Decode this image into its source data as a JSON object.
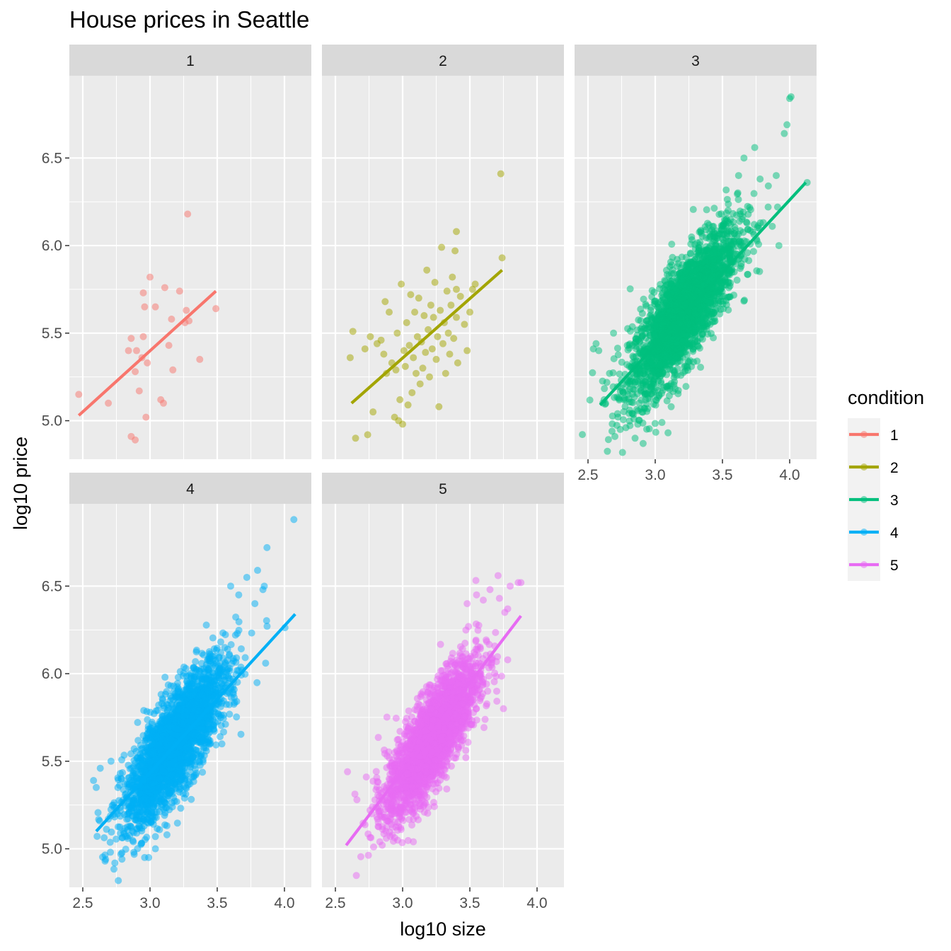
{
  "chart_data": {
    "type": "scatter",
    "title": "House prices in Seattle",
    "xlabel": "log10 size",
    "ylabel": "log10 price",
    "xlim": [
      2.4,
      4.2
    ],
    "ylim": [
      4.78,
      6.97
    ],
    "x_ticks": [
      "2.5",
      "3.0",
      "3.5",
      "4.0"
    ],
    "y_ticks": [
      "5.0",
      "5.5",
      "6.0",
      "6.5"
    ],
    "x_tick_values": [
      2.5,
      3.0,
      3.5,
      4.0
    ],
    "y_tick_values": [
      5.0,
      5.5,
      6.0,
      6.5
    ],
    "grid": true,
    "legend": {
      "title": "condition",
      "placement": "right",
      "entries": [
        "1",
        "2",
        "3",
        "4",
        "5"
      ]
    },
    "panels": [
      {
        "label": "1",
        "color": "#F8766D",
        "fit_line": {
          "x": [
            2.47,
            3.49
          ],
          "y": [
            5.03,
            5.74
          ]
        },
        "points": [
          [
            2.47,
            5.15
          ],
          [
            2.69,
            5.1
          ],
          [
            2.84,
            5.4
          ],
          [
            2.86,
            5.47
          ],
          [
            2.86,
            4.91
          ],
          [
            2.89,
            4.89
          ],
          [
            2.89,
            5.28
          ],
          [
            2.9,
            5.4
          ],
          [
            2.92,
            5.17
          ],
          [
            2.94,
            5.36
          ],
          [
            2.95,
            5.48
          ],
          [
            2.95,
            5.73
          ],
          [
            2.96,
            5.65
          ],
          [
            2.97,
            5.02
          ],
          [
            2.98,
            5.33
          ],
          [
            3.0,
            5.82
          ],
          [
            3.04,
            5.65
          ],
          [
            3.08,
            5.12
          ],
          [
            3.1,
            5.1
          ],
          [
            3.11,
            5.76
          ],
          [
            3.14,
            5.43
          ],
          [
            3.16,
            5.58
          ],
          [
            3.17,
            5.29
          ],
          [
            3.22,
            5.74
          ],
          [
            3.26,
            5.56
          ],
          [
            3.27,
            5.63
          ],
          [
            3.28,
            6.18
          ],
          [
            3.29,
            5.57
          ],
          [
            3.37,
            5.35
          ],
          [
            3.49,
            5.64
          ]
        ]
      },
      {
        "label": "2",
        "color": "#A3A500",
        "fit_line": {
          "x": [
            2.62,
            3.74
          ],
          "y": [
            5.1,
            5.86
          ]
        },
        "points": [
          [
            2.61,
            5.36
          ],
          [
            2.63,
            5.51
          ],
          [
            2.65,
            4.9
          ],
          [
            2.74,
            4.92
          ],
          [
            2.78,
            5.05
          ],
          [
            2.72,
            5.41
          ],
          [
            2.76,
            5.48
          ],
          [
            2.81,
            5.44
          ],
          [
            2.84,
            5.46
          ],
          [
            2.86,
            5.38
          ],
          [
            2.87,
            5.68
          ],
          [
            2.88,
            5.27
          ],
          [
            2.9,
            5.62
          ],
          [
            2.92,
            5.33
          ],
          [
            2.94,
            5.02
          ],
          [
            2.95,
            5.29
          ],
          [
            2.96,
            5.5
          ],
          [
            2.97,
            5.0
          ],
          [
            2.98,
            5.12
          ],
          [
            2.99,
            5.78
          ],
          [
            3.0,
            4.98
          ],
          [
            3.01,
            5.4
          ],
          [
            3.02,
            5.31
          ],
          [
            3.03,
            5.56
          ],
          [
            3.04,
            5.09
          ],
          [
            3.05,
            5.43
          ],
          [
            3.06,
            5.72
          ],
          [
            3.07,
            5.16
          ],
          [
            3.08,
            5.36
          ],
          [
            3.09,
            5.62
          ],
          [
            3.1,
            5.27
          ],
          [
            3.11,
            5.48
          ],
          [
            3.12,
            5.7
          ],
          [
            3.13,
            5.21
          ],
          [
            3.14,
            5.45
          ],
          [
            3.15,
            5.3
          ],
          [
            3.16,
            5.6
          ],
          [
            3.17,
            5.39
          ],
          [
            3.18,
            5.86
          ],
          [
            3.19,
            5.52
          ],
          [
            3.2,
            5.25
          ],
          [
            3.21,
            5.66
          ],
          [
            3.22,
            5.41
          ],
          [
            3.23,
            5.59
          ],
          [
            3.24,
            5.79
          ],
          [
            3.25,
            5.35
          ],
          [
            3.26,
            5.48
          ],
          [
            3.27,
            5.08
          ],
          [
            3.28,
            5.63
          ],
          [
            3.29,
            5.99
          ],
          [
            3.3,
            5.44
          ],
          [
            3.31,
            5.56
          ],
          [
            3.32,
            5.27
          ],
          [
            3.33,
            5.74
          ],
          [
            3.34,
            5.5
          ],
          [
            3.35,
            5.38
          ],
          [
            3.36,
            5.66
          ],
          [
            3.37,
            5.82
          ],
          [
            3.38,
            5.47
          ],
          [
            3.4,
            5.59
          ],
          [
            3.41,
            5.33
          ],
          [
            3.43,
            5.71
          ],
          [
            3.46,
            5.55
          ],
          [
            3.48,
            5.4
          ],
          [
            3.4,
            5.75
          ],
          [
            3.39,
            5.97
          ],
          [
            3.4,
            6.08
          ],
          [
            3.5,
            5.62
          ],
          [
            3.52,
            5.75
          ],
          [
            3.54,
            5.78
          ],
          [
            3.73,
            6.41
          ],
          [
            3.74,
            5.93
          ]
        ]
      },
      {
        "label": "3",
        "color": "#00BF7D",
        "fit_line": {
          "x": [
            2.59,
            4.12
          ],
          "y": [
            5.09,
            6.36
          ]
        },
        "cloud": {
          "center_x": 3.21,
          "center_y": 5.62,
          "sd_x": 0.2,
          "sd_y": 0.24,
          "correlation": 0.8
        },
        "points": [
          [
            2.54,
            5.41
          ],
          [
            2.56,
            5.44
          ],
          [
            2.58,
            5.4
          ],
          [
            2.62,
            5.12
          ],
          [
            2.66,
            5.27
          ],
          [
            2.69,
            5.5
          ],
          [
            2.72,
            5.04
          ],
          [
            2.74,
            4.95
          ],
          [
            2.85,
            4.9
          ],
          [
            2.91,
            4.87
          ],
          [
            3.05,
            4.99
          ],
          [
            3.56,
            6.15
          ],
          [
            3.62,
            6.4
          ],
          [
            3.66,
            6.5
          ],
          [
            3.74,
            6.56
          ],
          [
            3.78,
            6.38
          ],
          [
            3.84,
            6.22
          ],
          [
            3.9,
            6.4
          ],
          [
            3.91,
            6.22
          ],
          [
            3.92,
            6.0
          ],
          [
            3.96,
            6.64
          ],
          [
            3.98,
            6.69
          ],
          [
            4.0,
            6.84
          ],
          [
            4.01,
            6.85
          ],
          [
            4.13,
            6.36
          ]
        ]
      },
      {
        "label": "4",
        "color": "#00B0F6",
        "fit_line": {
          "x": [
            2.6,
            4.08
          ],
          "y": [
            5.1,
            6.34
          ]
        },
        "cloud": {
          "center_x": 3.19,
          "center_y": 5.6,
          "sd_x": 0.19,
          "sd_y": 0.23,
          "correlation": 0.8
        },
        "points": [
          [
            2.58,
            5.39
          ],
          [
            2.6,
            5.35
          ],
          [
            2.63,
            5.46
          ],
          [
            2.69,
            5.17
          ],
          [
            2.71,
            5.5
          ],
          [
            2.83,
            5.07
          ],
          [
            2.88,
            4.98
          ],
          [
            2.96,
            4.95
          ],
          [
            2.99,
            4.95
          ],
          [
            3.04,
            5.0
          ],
          [
            3.6,
            6.5
          ],
          [
            3.66,
            6.45
          ],
          [
            3.72,
            6.55
          ],
          [
            3.78,
            6.4
          ],
          [
            3.8,
            6.59
          ],
          [
            3.84,
            6.48
          ],
          [
            3.85,
            6.5
          ],
          [
            3.87,
            6.72
          ],
          [
            3.86,
            6.06
          ],
          [
            4.07,
            6.88
          ]
        ]
      },
      {
        "label": "5",
        "color": "#E76BF3",
        "fit_line": {
          "x": [
            2.58,
            3.88
          ],
          "y": [
            5.02,
            6.33
          ]
        },
        "cloud": {
          "center_x": 3.22,
          "center_y": 5.63,
          "sd_x": 0.17,
          "sd_y": 0.22,
          "correlation": 0.8
        },
        "points": [
          [
            2.59,
            5.44
          ],
          [
            2.66,
            5.28
          ],
          [
            2.73,
            5.41
          ],
          [
            2.77,
            5.2
          ],
          [
            2.86,
            5.18
          ],
          [
            3.08,
            5.04
          ],
          [
            3.48,
            6.4
          ],
          [
            3.55,
            6.45
          ],
          [
            3.6,
            6.42
          ],
          [
            3.65,
            6.48
          ],
          [
            3.71,
            6.56
          ],
          [
            3.72,
            6.43
          ],
          [
            3.76,
            6.35
          ],
          [
            3.8,
            6.5
          ],
          [
            3.86,
            6.52
          ],
          [
            3.88,
            6.52
          ],
          [
            3.75,
            5.8
          ],
          [
            3.7,
            5.9
          ]
        ]
      }
    ]
  }
}
